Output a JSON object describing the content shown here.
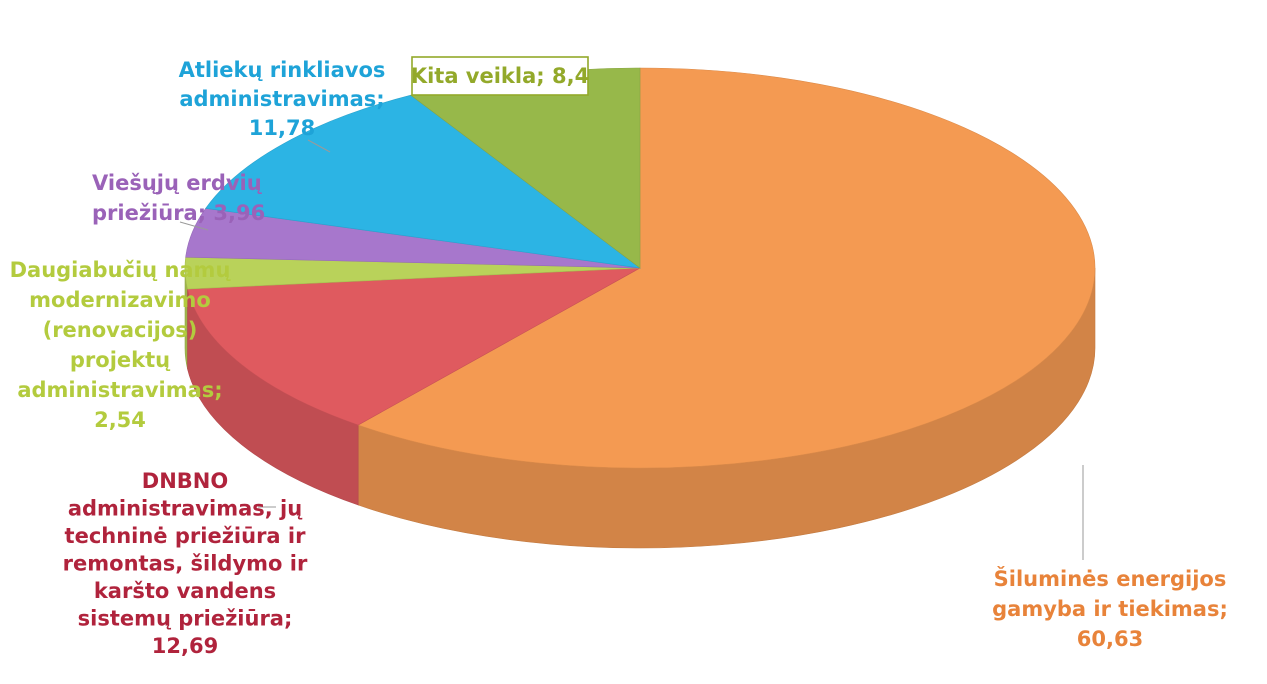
{
  "chart_data": {
    "type": "pie",
    "title": "",
    "style": "3d-pie",
    "slices": [
      {
        "label": "Šiluminės energijos gamyba ir tiekimas",
        "value": 60.63,
        "label_lines": [
          "Šiluminės energijos",
          "gamyba ir tiekimas;",
          "60,63"
        ],
        "color": "#f49a52",
        "text_color": "#e8833a"
      },
      {
        "label": "DNBNO administravimas, jų techninė priežiūra ir remontas, šildymo ir karšto vandens sistemų priežiūra",
        "value": 12.69,
        "label_lines": [
          "DNBNO",
          "administravimas, jų",
          "techninė priežiūra ir",
          "remontas, šildymo ir",
          "karšto vandens",
          "sistemų priežiūra;",
          "12,69"
        ],
        "color": "#df5a5f",
        "text_color": "#b0233c"
      },
      {
        "label": "Daugiabučių namų modernizavimo (renovacijos) projektų administravimas",
        "value": 2.54,
        "label_lines": [
          "Daugiabučių namų",
          "modernizavimo",
          "(renovacijos)",
          "projektų",
          "administravimas;",
          "2,54"
        ],
        "color": "#b9d25a",
        "text_color": "#b3cb3e"
      },
      {
        "label": "Viešųjų erdvių priežiūra",
        "value": 3.96,
        "label_lines": [
          "Viešųjų erdvių",
          "priežiūra; 3,96"
        ],
        "color": "#a777cc",
        "text_color": "#9a62b8"
      },
      {
        "label": "Atliekų rinkliavos administravimas",
        "value": 11.78,
        "label_lines": [
          "Atliekų rinkliavos",
          "administravimas;",
          "11,78"
        ],
        "color": "#2cb4e4",
        "text_color": "#1ea3d8"
      },
      {
        "label": "Kita veikla",
        "value": 8.4,
        "label_lines": [
          "Kita veikla; 8,4"
        ],
        "color": "#97b84a",
        "text_color": "#93a92a"
      }
    ]
  }
}
